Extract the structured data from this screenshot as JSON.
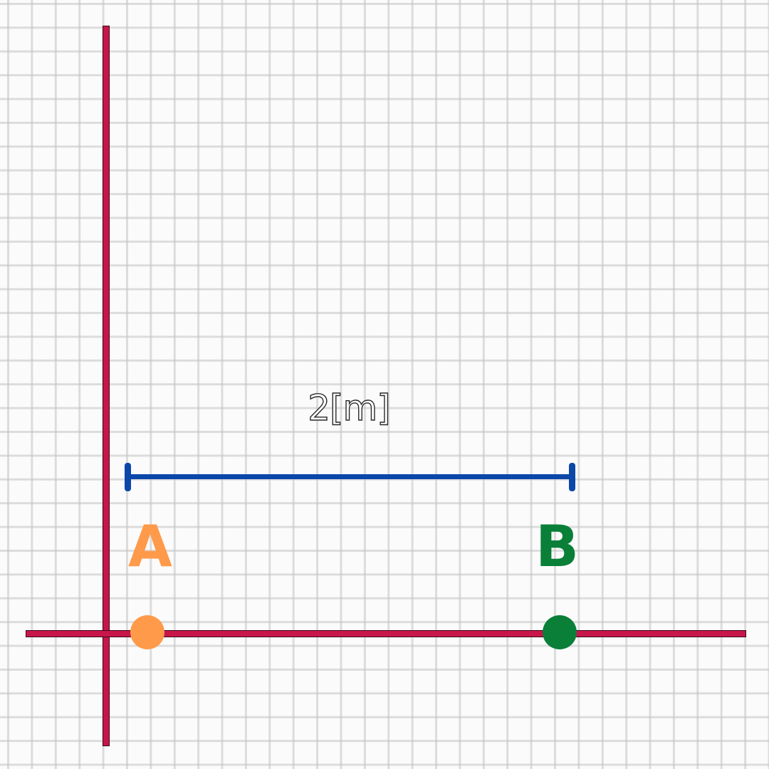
{
  "diagram": {
    "distance_label": "2[m]",
    "points": [
      {
        "id": "A",
        "label": "A",
        "color": "#ff9a4a"
      },
      {
        "id": "B",
        "label": "B",
        "color": "#0a7f38"
      }
    ],
    "colors": {
      "axis": "#c8154a",
      "dimension_line": "#0a47a8",
      "grid": "#c3c3c3",
      "background": "#fbfbfb"
    }
  }
}
